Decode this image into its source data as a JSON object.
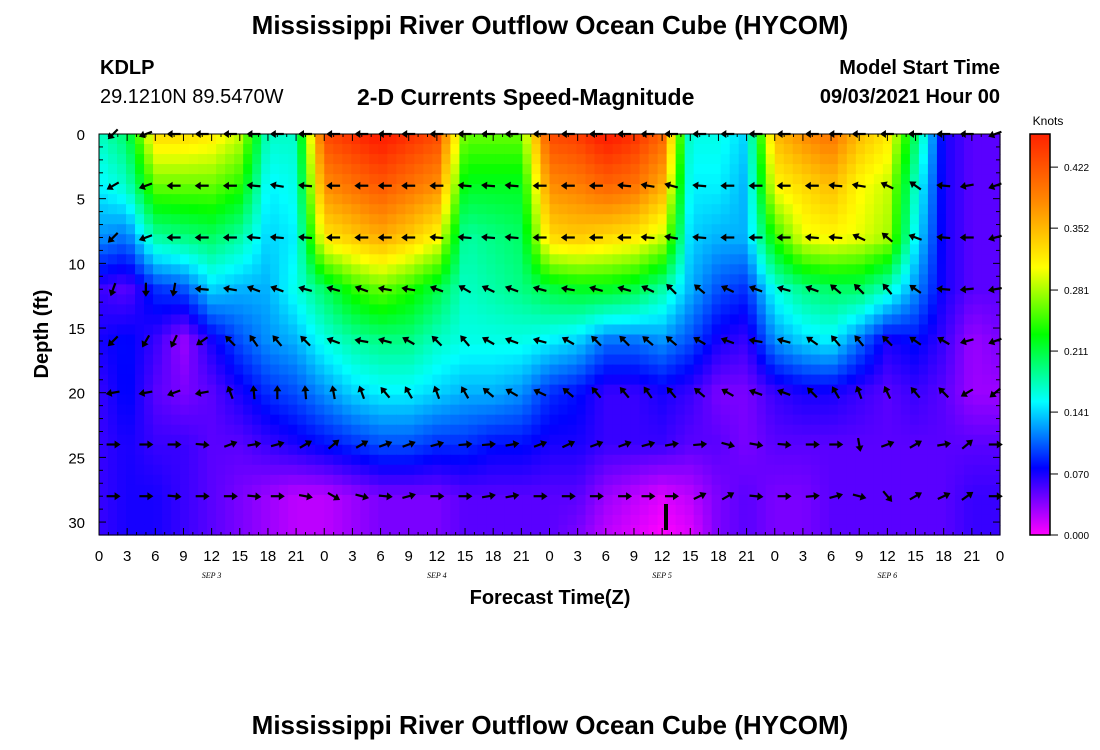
{
  "header": {
    "title": "Mississippi River Outflow Ocean Cube (HYCOM)",
    "station_id": "KDLP",
    "station_coords": "29.1210N  89.5470W",
    "subtitle": "2-D Currents Speed-Magnitude",
    "model_start_label": "Model Start Time",
    "model_start_value": "09/03/2021 Hour 00"
  },
  "footer": {
    "title": "Mississippi River Outflow Ocean Cube (HYCOM)"
  },
  "colors": {
    "scale": [
      "#ff00ff",
      "#0000ff",
      "#00ffff",
      "#00ff00",
      "#ffff00",
      "#ff8800",
      "#ff2200"
    ],
    "arrow": "#000000"
  },
  "chart_data": {
    "type": "heatmap",
    "title": "2-D Currents Speed-Magnitude",
    "xlabel": "Forecast Time(Z)",
    "ylabel": "Depth (ft)",
    "x_tick_labels": [
      "0",
      "3",
      "6",
      "9",
      "12",
      "15",
      "18",
      "21",
      "0",
      "3",
      "6",
      "9",
      "12",
      "15",
      "18",
      "21",
      "0",
      "3",
      "6",
      "9",
      "12",
      "15",
      "18",
      "21",
      "0",
      "3",
      "6",
      "9",
      "12",
      "15",
      "18",
      "21",
      "0"
    ],
    "day_labels": [
      "SEP 3",
      "SEP 4",
      "SEP 5",
      "SEP 6"
    ],
    "y_ticks": [
      0,
      5,
      10,
      15,
      20,
      25,
      30
    ],
    "ylim": [
      0,
      31
    ],
    "y_inverted": true,
    "x_hours": [
      0,
      96
    ],
    "colorbar": {
      "unit": "Knots",
      "ticks": [
        "0.422",
        "0.352",
        "0.281",
        "0.211",
        "0.141",
        "0.070",
        "0.000"
      ],
      "range": [
        0,
        0.46
      ]
    },
    "depths_ft": [
      0,
      4,
      8,
      12,
      16,
      20,
      24,
      28,
      31
    ],
    "times_h": [
      0,
      3,
      6,
      9,
      12,
      15,
      18,
      21,
      24,
      27,
      30,
      33,
      36,
      39,
      42,
      45,
      48,
      51,
      54,
      57,
      60,
      63,
      66,
      69,
      72,
      75,
      78,
      81,
      84,
      87,
      90,
      93,
      96
    ],
    "speed_knots": [
      [
        0.17,
        0.2,
        0.33,
        0.33,
        0.32,
        0.29,
        0.17,
        0.17,
        0.43,
        0.45,
        0.47,
        0.45,
        0.43,
        0.26,
        0.26,
        0.26,
        0.43,
        0.44,
        0.47,
        0.45,
        0.41,
        0.16,
        0.16,
        0.14,
        0.35,
        0.38,
        0.4,
        0.35,
        0.32,
        0.2,
        0.07,
        0.05,
        0.05
      ],
      [
        0.15,
        0.17,
        0.26,
        0.26,
        0.26,
        0.24,
        0.15,
        0.16,
        0.38,
        0.4,
        0.42,
        0.4,
        0.38,
        0.22,
        0.22,
        0.22,
        0.38,
        0.39,
        0.41,
        0.4,
        0.36,
        0.15,
        0.15,
        0.13,
        0.31,
        0.33,
        0.35,
        0.31,
        0.29,
        0.17,
        0.07,
        0.05,
        0.05
      ],
      [
        0.12,
        0.11,
        0.18,
        0.19,
        0.2,
        0.18,
        0.14,
        0.15,
        0.32,
        0.34,
        0.36,
        0.34,
        0.31,
        0.18,
        0.19,
        0.2,
        0.33,
        0.34,
        0.33,
        0.32,
        0.29,
        0.14,
        0.13,
        0.13,
        0.24,
        0.3,
        0.31,
        0.3,
        0.28,
        0.15,
        0.07,
        0.05,
        0.05
      ],
      [
        0.06,
        0.05,
        0.09,
        0.1,
        0.14,
        0.13,
        0.13,
        0.16,
        0.2,
        0.24,
        0.26,
        0.24,
        0.21,
        0.17,
        0.18,
        0.19,
        0.21,
        0.22,
        0.22,
        0.21,
        0.18,
        0.13,
        0.1,
        0.09,
        0.16,
        0.19,
        0.2,
        0.2,
        0.17,
        0.12,
        0.07,
        0.05,
        0.05
      ],
      [
        0.07,
        0.08,
        0.06,
        0.03,
        0.07,
        0.1,
        0.12,
        0.13,
        0.16,
        0.18,
        0.19,
        0.19,
        0.17,
        0.16,
        0.16,
        0.16,
        0.15,
        0.14,
        0.11,
        0.11,
        0.12,
        0.1,
        0.07,
        0.06,
        0.12,
        0.14,
        0.15,
        0.11,
        0.07,
        0.08,
        0.06,
        0.03,
        0.04
      ],
      [
        0.06,
        0.08,
        0.05,
        0.04,
        0.05,
        0.07,
        0.09,
        0.1,
        0.12,
        0.14,
        0.15,
        0.15,
        0.14,
        0.13,
        0.13,
        0.12,
        0.09,
        0.08,
        0.06,
        0.06,
        0.07,
        0.06,
        0.04,
        0.04,
        0.06,
        0.07,
        0.07,
        0.06,
        0.05,
        0.06,
        0.05,
        0.03,
        0.03
      ],
      [
        0.06,
        0.07,
        0.06,
        0.06,
        0.05,
        0.05,
        0.06,
        0.07,
        0.08,
        0.09,
        0.1,
        0.1,
        0.09,
        0.09,
        0.08,
        0.08,
        0.07,
        0.07,
        0.06,
        0.06,
        0.06,
        0.05,
        0.05,
        0.04,
        0.05,
        0.05,
        0.05,
        0.05,
        0.05,
        0.05,
        0.05,
        0.05,
        0.05
      ],
      [
        0.06,
        0.07,
        0.07,
        0.06,
        0.05,
        0.04,
        0.03,
        0.02,
        0.02,
        0.03,
        0.04,
        0.04,
        0.04,
        0.05,
        0.05,
        0.05,
        0.05,
        0.05,
        0.03,
        0.02,
        0.01,
        0.02,
        0.04,
        0.05,
        0.04,
        0.04,
        0.05,
        0.05,
        0.05,
        0.05,
        0.05,
        0.06,
        0.06
      ],
      [
        0.06,
        0.07,
        0.07,
        0.06,
        0.05,
        0.04,
        0.03,
        0.02,
        0.02,
        0.03,
        0.04,
        0.04,
        0.04,
        0.05,
        0.05,
        0.05,
        0.05,
        0.04,
        0.02,
        0.01,
        0.0,
        0.01,
        0.04,
        0.05,
        0.04,
        0.04,
        0.05,
        0.05,
        0.05,
        0.05,
        0.05,
        0.06,
        0.06
      ]
    ],
    "arrow_depths_ft": [
      0,
      4,
      8,
      12,
      16,
      20,
      24,
      28
    ],
    "arrow_times_h": [
      1.5,
      5,
      8,
      11,
      14,
      16.5,
      19,
      22,
      25,
      28,
      30.5,
      33,
      36,
      39,
      41.5,
      44,
      47,
      50,
      53,
      56,
      58.5,
      61,
      64,
      67,
      70,
      73,
      76,
      78.5,
      81,
      84,
      87,
      90,
      92.5,
      95.5
    ],
    "arrow_dir_deg": [
      [
        225,
        200,
        180,
        180,
        180,
        180,
        180,
        180,
        180,
        180,
        180,
        180,
        180,
        180,
        180,
        180,
        180,
        180,
        180,
        180,
        180,
        180,
        180,
        180,
        180,
        180,
        180,
        180,
        180,
        180,
        180,
        180,
        180,
        200
      ],
      [
        210,
        200,
        180,
        180,
        180,
        175,
        170,
        175,
        180,
        180,
        180,
        180,
        180,
        175,
        175,
        175,
        180,
        180,
        180,
        175,
        170,
        165,
        175,
        180,
        180,
        180,
        180,
        175,
        170,
        155,
        145,
        175,
        190,
        200
      ],
      [
        225,
        200,
        180,
        180,
        180,
        175,
        175,
        175,
        180,
        180,
        180,
        180,
        175,
        175,
        175,
        175,
        180,
        180,
        180,
        180,
        175,
        170,
        175,
        180,
        180,
        180,
        175,
        175,
        155,
        140,
        160,
        175,
        180,
        195
      ],
      [
        250,
        270,
        260,
        175,
        170,
        160,
        160,
        165,
        165,
        160,
        170,
        170,
        160,
        150,
        155,
        160,
        165,
        170,
        165,
        165,
        155,
        135,
        140,
        155,
        160,
        165,
        160,
        140,
        135,
        130,
        145,
        175,
        185,
        190
      ],
      [
        225,
        240,
        245,
        215,
        135,
        125,
        130,
        135,
        160,
        170,
        165,
        150,
        135,
        130,
        150,
        160,
        165,
        150,
        135,
        135,
        140,
        140,
        150,
        160,
        170,
        165,
        145,
        130,
        130,
        135,
        145,
        150,
        195,
        200
      ],
      [
        190,
        190,
        200,
        190,
        110,
        95,
        90,
        95,
        100,
        110,
        130,
        120,
        110,
        120,
        140,
        150,
        155,
        140,
        130,
        130,
        125,
        130,
        140,
        150,
        160,
        160,
        135,
        120,
        110,
        115,
        130,
        135,
        210,
        220
      ],
      [
        0,
        0,
        0,
        355,
        20,
        10,
        15,
        30,
        40,
        30,
        20,
        20,
        15,
        5,
        5,
        10,
        20,
        25,
        20,
        20,
        15,
        10,
        5,
        345,
        350,
        355,
        0,
        0,
        280,
        20,
        30,
        10,
        40,
        0
      ],
      [
        0,
        0,
        355,
        0,
        0,
        355,
        0,
        350,
        330,
        345,
        355,
        15,
        0,
        0,
        10,
        10,
        0,
        0,
        0,
        0,
        0,
        0,
        25,
        30,
        355,
        0,
        5,
        15,
        345,
        310,
        30,
        25,
        35,
        0
      ]
    ]
  }
}
